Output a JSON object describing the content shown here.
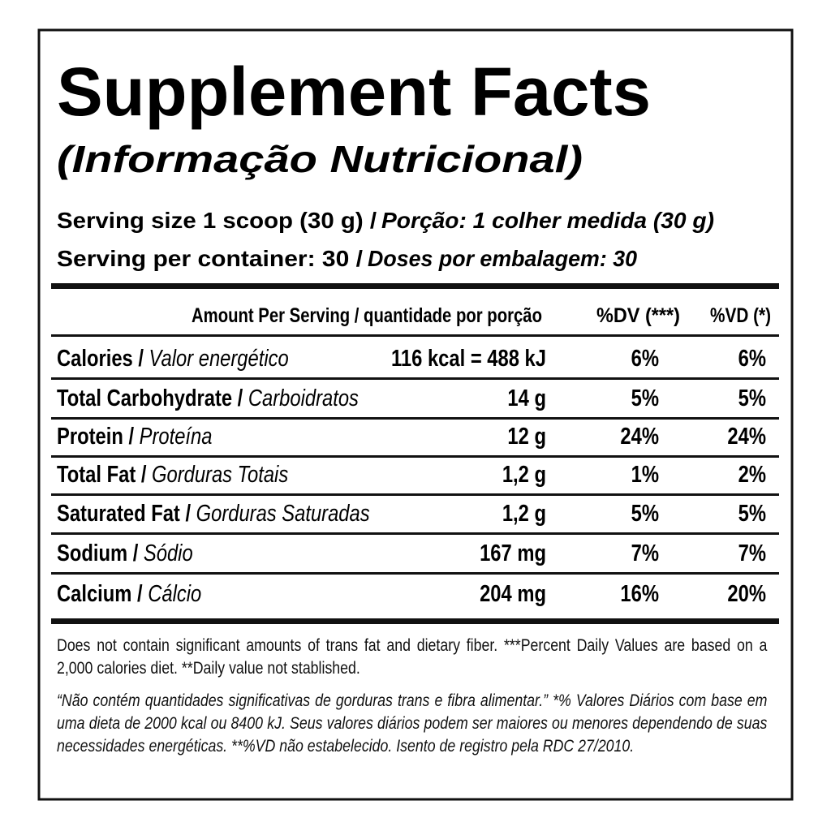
{
  "title": "Supplement Facts",
  "subtitle": "(Informação Nutricional)",
  "serving": [
    {
      "en": "Serving size 1 scoop (30 g) /",
      "pt": "Porção: 1 colher medida (30 g)"
    },
    {
      "en": "Serving per container: 30 /",
      "pt": "Doses por embalagem: 30"
    }
  ],
  "table": {
    "header": {
      "amount": "Amount Per Serving / quantidade por porção",
      "dv": "%DV (***)",
      "vd": "%VD (*)"
    },
    "rows": [
      {
        "en": "Calories /",
        "pt": "Valor energético",
        "amount": "116 kcal = 488 kJ",
        "dv": "6%",
        "vd": "6%"
      },
      {
        "en": "Total Carbohydrate /",
        "pt": "Carboidratos",
        "amount": "14 g",
        "dv": "5%",
        "vd": "5%"
      },
      {
        "en": "Protein /",
        "pt": "Proteína",
        "amount": "12 g",
        "dv": "24%",
        "vd": "24%"
      },
      {
        "en": "Total Fat /",
        "pt": "Gorduras Totais",
        "amount": "1,2 g",
        "dv": "1%",
        "vd": "2%"
      },
      {
        "en": "Saturated Fat /",
        "pt": "Gorduras Saturadas",
        "amount": "1,2 g",
        "dv": "5%",
        "vd": "5%"
      },
      {
        "en": "Sodium /",
        "pt": "Sódio",
        "amount": "167 mg",
        "dv": "7%",
        "vd": "7%"
      },
      {
        "en": "Calcium /",
        "pt": "Cálcio",
        "amount": "204 mg",
        "dv": "16%",
        "vd": "20%"
      }
    ]
  },
  "footnotes": {
    "en": "Does not contain significant amounts of trans fat and dietary fiber. ***Percent Daily Values are based on a 2,000 calories diet. **Daily value not stablished.",
    "pt": "“Não contém quantidades significativas de gorduras trans e fibra alimentar.” *% Valores Diários com base em uma dieta de 2000 kcal ou 8400 kJ. Seus valores diários podem ser maiores ou menores dependendo de suas necessidades energéticas. **%VD não estabelecido. Isento de registro pela RDC 27/2010."
  }
}
